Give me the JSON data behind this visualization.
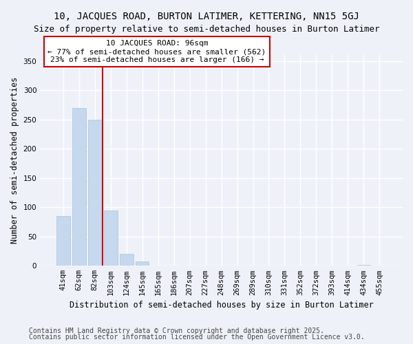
{
  "title1": "10, JACQUES ROAD, BURTON LATIMER, KETTERING, NN15 5GJ",
  "title2": "Size of property relative to semi-detached houses in Burton Latimer",
  "xlabel": "Distribution of semi-detached houses by size in Burton Latimer",
  "ylabel": "Number of semi-detached properties",
  "categories": [
    "41sqm",
    "62sqm",
    "82sqm",
    "103sqm",
    "124sqm",
    "145sqm",
    "165sqm",
    "186sqm",
    "207sqm",
    "227sqm",
    "248sqm",
    "269sqm",
    "289sqm",
    "310sqm",
    "331sqm",
    "352sqm",
    "372sqm",
    "393sqm",
    "414sqm",
    "434sqm",
    "455sqm"
  ],
  "values": [
    85,
    270,
    250,
    94,
    20,
    7,
    0,
    0,
    0,
    0,
    0,
    0,
    0,
    0,
    0,
    0,
    0,
    0,
    0,
    2,
    0
  ],
  "bar_color": "#c5d8ed",
  "bar_edge_color": "#a8c4dd",
  "vline_x": 2.5,
  "vline_color": "#cc0000",
  "annotation_text": "10 JACQUES ROAD: 96sqm\n← 77% of semi-detached houses are smaller (562)\n23% of semi-detached houses are larger (166) →",
  "annotation_box_color": "#ffffff",
  "annotation_box_edge": "#cc0000",
  "ylim": [
    0,
    360
  ],
  "yticks": [
    0,
    50,
    100,
    150,
    200,
    250,
    300,
    350
  ],
  "footer1": "Contains HM Land Registry data © Crown copyright and database right 2025.",
  "footer2": "Contains public sector information licensed under the Open Government Licence v3.0.",
  "bg_color": "#eef2f8",
  "plot_bg_color": "#eef2f8",
  "grid_color": "#ffffff",
  "title_fontsize": 10,
  "subtitle_fontsize": 9,
  "axis_label_fontsize": 8.5,
  "tick_fontsize": 7.5,
  "annotation_fontsize": 8,
  "footer_fontsize": 7
}
